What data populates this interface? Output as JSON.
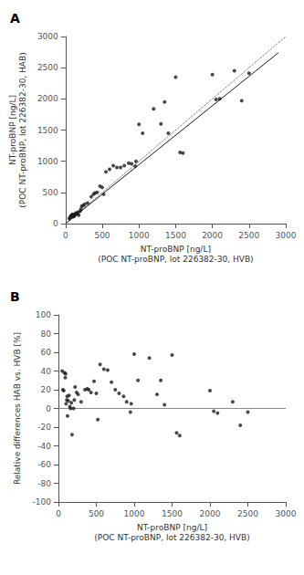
{
  "chart_data": [
    {
      "type": "scatter",
      "title": "A",
      "xlabel": "NT-proBNP [ng/L]\n(POC NT-proBNP, lot 226382-30, HVB)",
      "ylabel": "NT-proBNP [ng/L]\n(POC NT-proBNP, lot 226382-30, HAB)",
      "xlim": [
        0,
        3000
      ],
      "ylim": [
        0,
        3000
      ],
      "xticks": [
        0,
        500,
        1000,
        1500,
        2000,
        2500,
        3000
      ],
      "yticks": [
        0,
        500,
        1000,
        1500,
        2000,
        2500,
        3000
      ],
      "grid": false,
      "series": [
        {
          "type": "scatter",
          "color": "#1a1a1a",
          "marker": "circle",
          "x": [
            50,
            60,
            70,
            80,
            90,
            95,
            100,
            110,
            115,
            120,
            130,
            140,
            150,
            160,
            170,
            180,
            200,
            210,
            220,
            240,
            260,
            300,
            350,
            380,
            400,
            430,
            470,
            500,
            520,
            550,
            600,
            650,
            700,
            750,
            800,
            860,
            900,
            950,
            960,
            1000,
            1050,
            1200,
            1300,
            1350,
            1400,
            1500,
            1560,
            1600,
            2000,
            2050,
            2100,
            2300,
            2400,
            2500
          ],
          "values": [
            80,
            100,
            120,
            130,
            140,
            150,
            110,
            120,
            140,
            120,
            150,
            170,
            155,
            160,
            185,
            135,
            200,
            235,
            280,
            290,
            310,
            330,
            430,
            470,
            490,
            500,
            600,
            580,
            470,
            830,
            870,
            930,
            900,
            900,
            930,
            970,
            960,
            920,
            1000,
            1590,
            1450,
            1840,
            1600,
            1950,
            1450,
            2350,
            1140,
            1130,
            2390,
            1990,
            2000,
            2450,
            1970,
            2410
          ]
        },
        {
          "type": "line",
          "color": "#1a1a1a",
          "line_style": "solid",
          "x": [
            0,
            2900
          ],
          "values": [
            0,
            2740
          ]
        },
        {
          "type": "line",
          "color": "#555555",
          "line_style": "dotted",
          "x": [
            0,
            3000
          ],
          "values": [
            0,
            3000
          ]
        }
      ]
    },
    {
      "type": "scatter",
      "title": "B",
      "xlabel": "NT-proBNP [ng/L]\n(POC NT-proBNP, lot 226382-30, HVB)",
      "ylabel": "Relative differences HAB vs. HVB [%]",
      "xlim": [
        0,
        3000
      ],
      "ylim": [
        -100,
        100
      ],
      "xticks": [
        0,
        500,
        1000,
        1500,
        2000,
        2500,
        3000
      ],
      "yticks": [
        -100,
        -80,
        -60,
        -40,
        -20,
        0,
        20,
        40,
        60,
        80,
        100
      ],
      "grid": false,
      "series": [
        {
          "type": "scatter",
          "color": "#1a1a1a",
          "marker": "circle",
          "x": [
            50,
            60,
            70,
            80,
            90,
            95,
            100,
            110,
            115,
            120,
            130,
            140,
            150,
            160,
            170,
            180,
            200,
            210,
            220,
            240,
            260,
            300,
            350,
            380,
            400,
            430,
            470,
            500,
            520,
            550,
            600,
            650,
            700,
            750,
            800,
            860,
            900,
            950,
            960,
            1000,
            1050,
            1200,
            1300,
            1350,
            1400,
            1500,
            1560,
            1600,
            2000,
            2050,
            2100,
            2300,
            2400,
            2500
          ],
          "values": [
            40,
            20,
            19,
            38,
            33,
            37,
            5,
            9,
            13,
            -8,
            8,
            14,
            2,
            0,
            6,
            -28,
            0,
            9,
            23,
            17,
            15,
            7,
            20,
            21,
            20,
            17,
            29,
            16,
            -12,
            47,
            42,
            41,
            28,
            20,
            16,
            13,
            7,
            -4,
            5,
            58,
            30,
            54,
            15,
            30,
            4,
            57,
            -26,
            -29,
            19,
            -3,
            -5,
            7,
            -18,
            -4
          ]
        },
        {
          "type": "line",
          "color": "#888888",
          "line_style": "solid",
          "x": [
            0,
            3000
          ],
          "values": [
            0,
            0
          ]
        }
      ]
    }
  ]
}
